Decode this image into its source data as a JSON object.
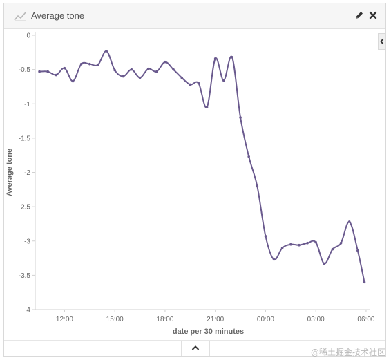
{
  "panel": {
    "title": "Average tone",
    "title_icon": "line-chart-icon",
    "edit_icon": "pencil-icon",
    "close_icon": "close-icon",
    "side_toggle_icon": "chevron-left-icon",
    "collapse_icon": "chevron-up-icon"
  },
  "watermark": "@稀土掘金技术社区",
  "colors": {
    "line": "#6a5a8e",
    "axis": "#d0d0d0",
    "text": "#666666"
  },
  "chart_data": {
    "type": "line",
    "title": "",
    "xlabel": "date per 30 minutes",
    "ylabel": "Average tone",
    "ylim": [
      -4,
      0
    ],
    "yticks": [
      0,
      -0.5,
      -1,
      -1.5,
      -2,
      -2.5,
      -3,
      -3.5,
      -4
    ],
    "ytick_labels": [
      "0",
      "-0.5",
      "-1",
      "-1.5",
      "-2",
      "-2.5",
      "-3",
      "-3.5",
      "-4"
    ],
    "xtick_labels": [
      "12:00",
      "15:00",
      "18:00",
      "21:00",
      "00:00",
      "03:00",
      "06:00"
    ],
    "xticks": [
      12,
      15,
      18,
      21,
      24,
      27,
      30
    ],
    "xlim": [
      10.25,
      30.25
    ],
    "grid": false,
    "series": [
      {
        "x": [
          10.5,
          11.0,
          11.5,
          12.0,
          12.5,
          13.0,
          13.5,
          14.0,
          14.5,
          15.0,
          15.5,
          16.0,
          16.5,
          17.0,
          17.5,
          18.0,
          18.5,
          19.0,
          19.5,
          20.0,
          20.5,
          21.0,
          21.5,
          22.0,
          22.5,
          23.0,
          23.5,
          24.0,
          24.5,
          25.0,
          25.5,
          26.0,
          26.5,
          27.0,
          27.5,
          28.0,
          28.5,
          29.0,
          29.5
        ],
        "values": [
          -0.53,
          -0.53,
          -0.58,
          -0.48,
          -0.67,
          -0.42,
          -0.42,
          -0.43,
          -0.23,
          -0.51,
          -0.6,
          -0.5,
          -0.62,
          -0.49,
          -0.53,
          -0.39,
          -0.5,
          -0.62,
          -0.72,
          -0.7,
          -1.05,
          -0.34,
          -0.66,
          -0.32,
          -1.2,
          -1.77,
          -2.2,
          -2.93,
          -3.27,
          -3.1,
          -3.05,
          -3.06,
          -3.03,
          -3.02,
          -3.33,
          -3.12,
          -3.03,
          -2.72,
          -3.14
        ]
      }
    ],
    "last_point": {
      "x": 29.9,
      "y": -3.6
    }
  }
}
